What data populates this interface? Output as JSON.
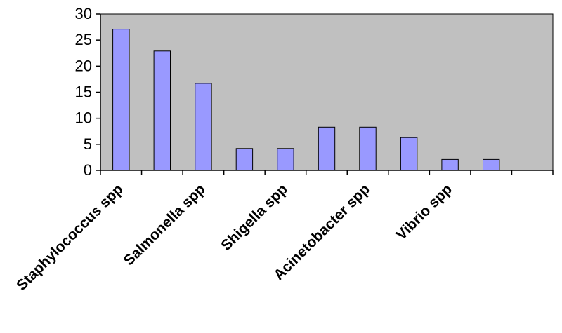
{
  "chart_data": {
    "type": "bar",
    "title": "",
    "xlabel": "",
    "ylabel": "",
    "categories": [
      "Staphylococcus spp",
      "",
      "Salmonella spp",
      "",
      "Shigella spp",
      "",
      "Acinetobacter spp",
      "",
      "Vibrio spp",
      "",
      ""
    ],
    "values": [
      27.1,
      22.9,
      16.7,
      4.2,
      4.2,
      8.3,
      8.3,
      6.3,
      2.1,
      2.1,
      null
    ],
    "ylim": [
      0,
      30
    ],
    "yticks": [
      0,
      5,
      10,
      15,
      20,
      25,
      30
    ],
    "grid": false,
    "legend": "none",
    "colors": {
      "plot_background": "#c0c0c0",
      "bar_fill": "#9999ff",
      "bar_stroke": "#000000",
      "axis": "#000000"
    }
  }
}
